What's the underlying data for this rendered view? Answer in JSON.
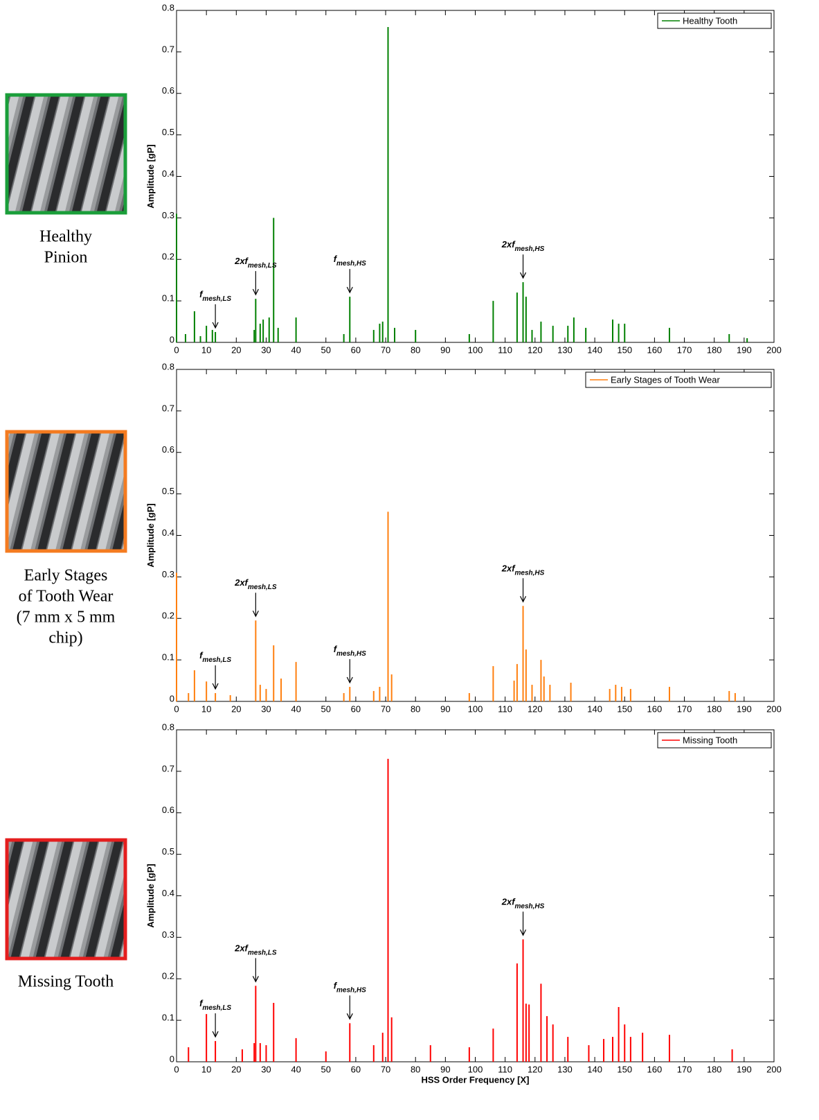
{
  "captions": [
    [
      "Healthy",
      "Pinion"
    ],
    [
      "Early Stages",
      "of Tooth Wear",
      "(7 mm x 5 mm",
      "chip)"
    ],
    [
      "Missing Tooth"
    ]
  ],
  "chart_data": [
    {
      "type": "stem",
      "ylabel": "Amplitude [gP]",
      "xlim": [
        0,
        200
      ],
      "ylim": [
        0,
        0.8
      ],
      "xticks": [
        0,
        10,
        20,
        30,
        40,
        50,
        60,
        70,
        80,
        90,
        100,
        110,
        120,
        130,
        140,
        150,
        160,
        170,
        180,
        190,
        200
      ],
      "yticks": [
        0,
        0.1,
        0.2,
        0.3,
        0.4,
        0.5,
        0.6,
        0.7,
        0.8
      ],
      "series": [
        {
          "name": "Healthy Tooth",
          "color": "#008000",
          "x": [
            0,
            3,
            6,
            8,
            10,
            12,
            13,
            26,
            26.5,
            28,
            29,
            31,
            32.5,
            34,
            40,
            56,
            58,
            66,
            68,
            69,
            70.8,
            73,
            80,
            98,
            106,
            114,
            116,
            117,
            119,
            122,
            126,
            131,
            133,
            137,
            146,
            148,
            150,
            165,
            185,
            191
          ],
          "values": [
            0.31,
            0.02,
            0.075,
            0.015,
            0.04,
            0.03,
            0.025,
            0.03,
            0.105,
            0.045,
            0.055,
            0.06,
            0.3,
            0.035,
            0.06,
            0.02,
            0.11,
            0.03,
            0.045,
            0.05,
            0.76,
            0.035,
            0.03,
            0.02,
            0.1,
            0.12,
            0.145,
            0.11,
            0.03,
            0.05,
            0.04,
            0.04,
            0.06,
            0.035,
            0.055,
            0.045,
            0.045,
            0.035,
            0.02,
            0.01
          ]
        }
      ],
      "annotations": [
        {
          "text": "f",
          "sub": "mesh,LS",
          "x": 13,
          "y": 0.025
        },
        {
          "text": "2xf",
          "sub": "mesh,LS",
          "x": 26.5,
          "y": 0.105
        },
        {
          "text": "f",
          "sub": "mesh,HS",
          "x": 58,
          "y": 0.11
        },
        {
          "text": "2xf",
          "sub": "mesh,HS",
          "x": 116,
          "y": 0.145
        }
      ]
    },
    {
      "type": "stem",
      "ylabel": "Amplitude [gP]",
      "xlim": [
        0,
        200
      ],
      "ylim": [
        0,
        0.8
      ],
      "xticks": [
        0,
        10,
        20,
        30,
        40,
        50,
        60,
        70,
        80,
        90,
        100,
        110,
        120,
        130,
        140,
        150,
        160,
        170,
        180,
        190,
        200
      ],
      "yticks": [
        0,
        0.1,
        0.2,
        0.3,
        0.4,
        0.5,
        0.6,
        0.7,
        0.8
      ],
      "series": [
        {
          "name": "Early Stages of Tooth Wear",
          "color": "#ff7f0e",
          "x": [
            0,
            4,
            6,
            10,
            13,
            18,
            26.5,
            28,
            30,
            32.5,
            35,
            40,
            56,
            58,
            66,
            68,
            70.8,
            72,
            98,
            106,
            113,
            114,
            116,
            117,
            119,
            122,
            123,
            125,
            132,
            145,
            147,
            149,
            152,
            165,
            185,
            187
          ],
          "values": [
            0.31,
            0.02,
            0.075,
            0.048,
            0.02,
            0.015,
            0.195,
            0.04,
            0.03,
            0.135,
            0.055,
            0.095,
            0.02,
            0.035,
            0.025,
            0.035,
            0.457,
            0.065,
            0.02,
            0.085,
            0.05,
            0.09,
            0.23,
            0.125,
            0.04,
            0.1,
            0.06,
            0.04,
            0.045,
            0.03,
            0.04,
            0.035,
            0.03,
            0.035,
            0.025,
            0.02
          ]
        }
      ],
      "annotations": [
        {
          "text": "f",
          "sub": "mesh,LS",
          "x": 13,
          "y": 0.02
        },
        {
          "text": "2xf",
          "sub": "mesh,LS",
          "x": 26.5,
          "y": 0.195
        },
        {
          "text": "f",
          "sub": "mesh,HS",
          "x": 58,
          "y": 0.035
        },
        {
          "text": "2xf",
          "sub": "mesh,HS",
          "x": 116,
          "y": 0.23
        }
      ]
    },
    {
      "type": "stem",
      "ylabel": "Amplitude [gP]",
      "xlabel": "HSS Order Frequency [X]",
      "xlim": [
        0,
        200
      ],
      "ylim": [
        0,
        0.8
      ],
      "xticks": [
        0,
        10,
        20,
        30,
        40,
        50,
        60,
        70,
        80,
        90,
        100,
        110,
        120,
        130,
        140,
        150,
        160,
        170,
        180,
        190,
        200
      ],
      "yticks": [
        0,
        0.1,
        0.2,
        0.3,
        0.4,
        0.5,
        0.6,
        0.7,
        0.8
      ],
      "series": [
        {
          "name": "Missing Tooth",
          "color": "#ff0000",
          "x": [
            4,
            10,
            13,
            22,
            26,
            26.5,
            28,
            30,
            32.5,
            40,
            50,
            58,
            66,
            69,
            70.8,
            72,
            85,
            98,
            106,
            114,
            116,
            117,
            118,
            122,
            124,
            126,
            131,
            138,
            143,
            146,
            148,
            150,
            152,
            156,
            165,
            186
          ],
          "values": [
            0.035,
            0.115,
            0.05,
            0.03,
            0.045,
            0.183,
            0.045,
            0.04,
            0.142,
            0.057,
            0.025,
            0.093,
            0.04,
            0.07,
            0.73,
            0.107,
            0.04,
            0.035,
            0.08,
            0.237,
            0.295,
            0.14,
            0.138,
            0.188,
            0.11,
            0.09,
            0.06,
            0.04,
            0.055,
            0.06,
            0.132,
            0.09,
            0.06,
            0.07,
            0.065,
            0.03
          ]
        }
      ],
      "annotations": [
        {
          "text": "f",
          "sub": "mesh,LS",
          "x": 13,
          "y": 0.05
        },
        {
          "text": "2xf",
          "sub": "mesh,LS",
          "x": 26.5,
          "y": 0.183
        },
        {
          "text": "f",
          "sub": "mesh,HS",
          "x": 58,
          "y": 0.093
        },
        {
          "text": "2xf",
          "sub": "mesh,HS",
          "x": 116,
          "y": 0.295
        }
      ]
    }
  ]
}
